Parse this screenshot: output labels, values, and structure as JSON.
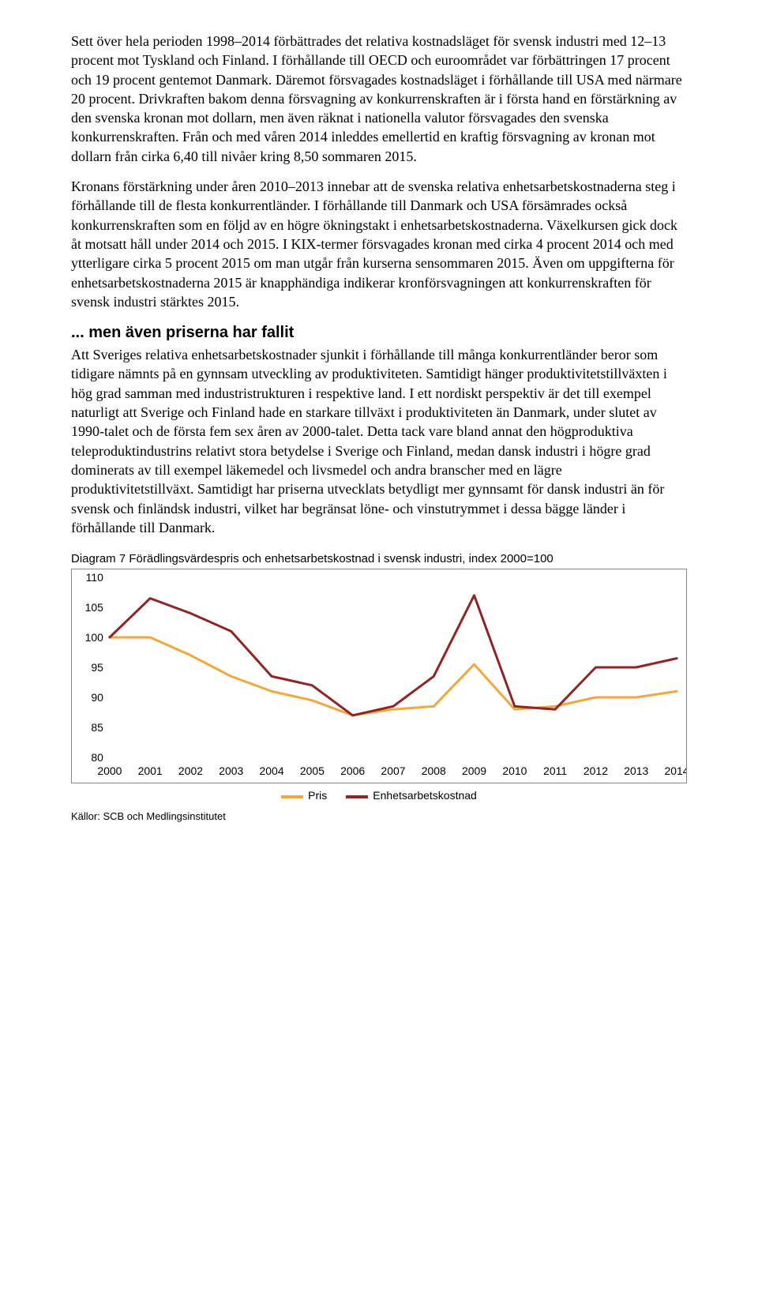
{
  "paragraphs": {
    "p1": "Sett över hela perioden 1998–2014 förbättrades det relativa kostnadsläget för svensk industri med 12–13 procent mot Tyskland och Finland. I förhållande till OECD och euroområdet var förbättringen 17 procent och 19 procent gentemot Danmark. Däremot försvagades kostnadsläget i förhållande till USA med närmare 20 procent. Drivkraften bakom denna försvagning av konkurrenskraften är i första hand en förstärkning av den svenska kronan mot dollarn, men även räknat i nationella valutor försvagades den svenska konkurrenskraften. Från och med våren 2014 inleddes emellertid en kraftig försvagning av kronan mot dollarn från cirka 6,40 till nivåer kring 8,50 sommaren 2015.",
    "p2": "Kronans förstärkning under åren 2010–2013 innebar att de svenska relativa enhetsarbetskostnaderna steg i förhållande till de flesta konkurrentländer. I förhållande till Danmark och USA försämrades också konkurrenskraften som en följd av en högre ökningstakt i enhetsarbetskostnaderna. Växelkursen gick dock åt motsatt håll under 2014 och 2015. I KIX-termer försvagades kronan med cirka 4 procent 2014 och med ytterligare cirka 5 procent 2015 om man utgår från kurserna sensommaren 2015. Även om uppgifterna för enhetsarbetskostnaderna 2015 är knapphändiga indikerar kronförsvagningen att konkurrenskraften för svensk industri stärktes 2015.",
    "h2": "... men även priserna har fallit",
    "p3": "Att Sveriges relativa enhetsarbetskostnader sjunkit i förhållande till många konkurrentländer beror som tidigare nämnts på en gynnsam utveckling av produktiviteten. Samtidigt hänger produktivitetstillväxten i hög grad samman med industristrukturen i respektive land. I ett nordiskt perspektiv är det till exempel naturligt att Sverige och Finland hade en starkare tillväxt i produktiviteten än Danmark, under slutet av 1990-talet och de första fem sex åren av 2000-talet. Detta tack vare bland annat den högproduktiva teleproduktindustrins relativt stora betydelse i Sverige och Finland, medan dansk industri i högre grad dominerats av till exempel läkemedel och livsmedel och andra branscher med en lägre produktivitetstillväxt. Samtidigt har priserna utvecklats betydligt mer gynnsamt för dansk industri än för svensk och finländsk industri, vilket har begränsat löne- och vinstutrymmet i dessa bägge länder i förhållande till Danmark."
  },
  "chart": {
    "title": "Diagram 7 Förädlingsvärdespris och enhetsarbetskostnad i svensk industri, index 2000=100",
    "type": "line",
    "ylim": [
      80,
      110
    ],
    "ytick_step": 5,
    "yticks": [
      80,
      85,
      90,
      95,
      100,
      105,
      110
    ],
    "categories": [
      "2000",
      "2001",
      "2002",
      "2003",
      "2004",
      "2005",
      "2006",
      "2007",
      "2008",
      "2009",
      "2010",
      "2011",
      "2012",
      "2013",
      "2014"
    ],
    "series": [
      {
        "name": "Pris",
        "color": "#f2a73c",
        "values": [
          100,
          100,
          97,
          93.5,
          91,
          89.5,
          87,
          88,
          88.5,
          95.5,
          88,
          88.5,
          90,
          90,
          91
        ]
      },
      {
        "name": "Enhetsarbetskostnad",
        "color": "#8f2423",
        "values": [
          100,
          106.5,
          104,
          101,
          93.5,
          92,
          87,
          88.5,
          93.5,
          107,
          88.5,
          88,
          95,
          95,
          96.5
        ]
      }
    ],
    "line_width": 3,
    "tick_fontsize": 14,
    "tick_font": "Arial, Helvetica, sans-serif",
    "background_color": "#ffffff",
    "sources": "Källor: SCB och Medlingsinstitutet"
  }
}
